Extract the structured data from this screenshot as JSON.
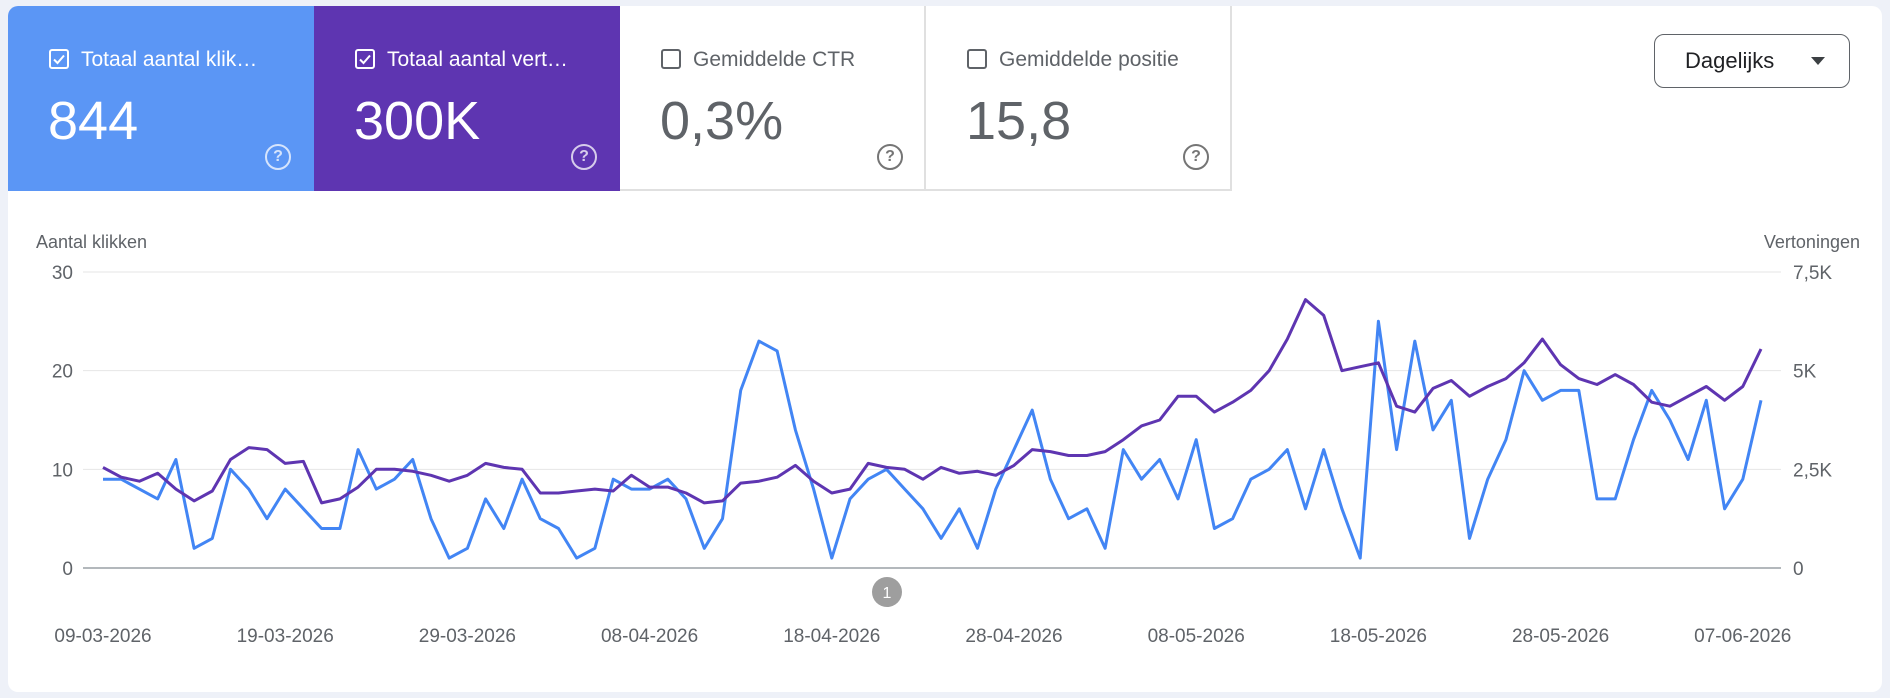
{
  "cards": [
    {
      "id": "clicks",
      "label": "Totaal aantal klik…",
      "value": "844",
      "checked": true,
      "color": "#5b96f5"
    },
    {
      "id": "impr",
      "label": "Totaal aantal vert…",
      "value": "300K",
      "checked": true,
      "color": "#5e35b1"
    },
    {
      "id": "ctr",
      "label": "Gemiddelde CTR",
      "value": "0,3%",
      "checked": false
    },
    {
      "id": "pos",
      "label": "Gemiddelde positie",
      "value": "15,8",
      "checked": false
    }
  ],
  "dropdown": {
    "label": "Dagelijks"
  },
  "annotation": {
    "label": "1"
  },
  "chart_data": {
    "type": "line",
    "ylabel_left": "Aantal klikken",
    "ylabel_right": "Vertoningen",
    "y_left_ticks": [
      "0",
      "10",
      "20",
      "30"
    ],
    "y_right_ticks": [
      "0",
      "2,5K",
      "5K",
      "7,5K"
    ],
    "x_ticks": [
      "09-03-2026",
      "19-03-2026",
      "29-03-2026",
      "08-04-2026",
      "18-04-2026",
      "28-04-2026",
      "08-05-2026",
      "18-05-2026",
      "28-05-2026",
      "07-06-2026"
    ],
    "ylim_left": [
      0,
      30
    ],
    "ylim_right": [
      0,
      7500
    ],
    "grid": true,
    "series": [
      {
        "axis": "left",
        "color": "#4285f4",
        "values": [
          9,
          9,
          8,
          7,
          11,
          2,
          3,
          10,
          8,
          5,
          8,
          6,
          4,
          4,
          12,
          8,
          9,
          11,
          5,
          1,
          2,
          7,
          4,
          9,
          5,
          4,
          1,
          2,
          9,
          8,
          8,
          9,
          7,
          2,
          5,
          18,
          23,
          22,
          14,
          8,
          1,
          7,
          9,
          10,
          8,
          6,
          3,
          6,
          2,
          8,
          12,
          16,
          9,
          5,
          6,
          2,
          12,
          9,
          11,
          7,
          13,
          4,
          5,
          9,
          10,
          12,
          6,
          12,
          6,
          1,
          25,
          12,
          23,
          14,
          17,
          3,
          9,
          13,
          20,
          17,
          18,
          18,
          7,
          7,
          13,
          18,
          15,
          11,
          17,
          6,
          9,
          17
        ]
      },
      {
        "axis": "right",
        "color": "#5e35b1",
        "values": [
          2550,
          2300,
          2200,
          2400,
          2000,
          1700,
          1950,
          2750,
          3050,
          3000,
          2650,
          2700,
          1650,
          1750,
          2050,
          2500,
          2500,
          2450,
          2350,
          2200,
          2350,
          2650,
          2550,
          2500,
          1900,
          1900,
          1950,
          2000,
          1950,
          2350,
          2050,
          2050,
          1900,
          1650,
          1700,
          2150,
          2200,
          2300,
          2600,
          2200,
          1900,
          2000,
          2650,
          2550,
          2500,
          2250,
          2550,
          2400,
          2450,
          2350,
          2600,
          3000,
          2950,
          2850,
          2850,
          2950,
          3250,
          3600,
          3750,
          4350,
          4350,
          3950,
          4200,
          4500,
          5000,
          5800,
          6800,
          6400,
          5000,
          5100,
          5200,
          4100,
          3950,
          4550,
          4750,
          4350,
          4600,
          4800,
          5200,
          5800,
          5150,
          4800,
          4650,
          4900,
          4650,
          4200,
          4100,
          4350,
          4600,
          4250,
          4600,
          5550
        ]
      }
    ]
  }
}
